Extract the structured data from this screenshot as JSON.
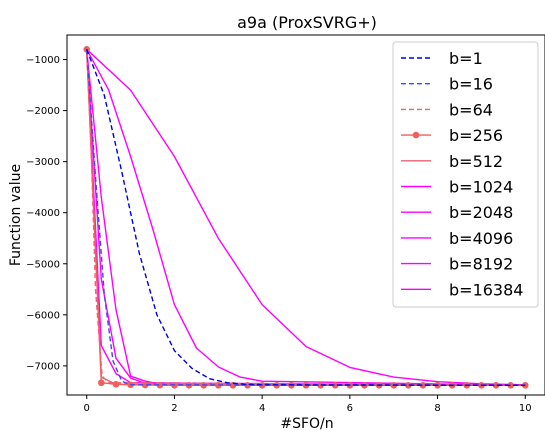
{
  "chart_data": {
    "type": "line",
    "title": "a9a (ProxSVRG+)",
    "xlabel": "#SFO/n",
    "ylabel": "Function value",
    "xlim": [
      -0.45,
      10.45
    ],
    "ylim": [
      -7570,
      -520
    ],
    "xticks": [
      0,
      2,
      4,
      6,
      8,
      10
    ],
    "yticks": [
      -1000,
      -2000,
      -3000,
      -4000,
      -5000,
      -6000,
      -7000
    ],
    "xtick_labels": [
      "0",
      "2",
      "4",
      "6",
      "8",
      "10"
    ],
    "ytick_labels": [
      "−1000",
      "−2000",
      "−3000",
      "−4000",
      "−5000",
      "−6000",
      "−7000"
    ],
    "grid": false,
    "legend": "top-right",
    "series": [
      {
        "name": "b=1",
        "color": "#0000dd",
        "dash": "dashed",
        "marker": false,
        "x": [
          0,
          0.4,
          0.8,
          1.2,
          1.6,
          2.0,
          2.4,
          2.8,
          3.2,
          3.6,
          4.0,
          10
        ],
        "y": [
          -800,
          -1700,
          -3200,
          -4800,
          -6000,
          -6700,
          -7050,
          -7250,
          -7330,
          -7360,
          -7370,
          -7380
        ]
      },
      {
        "name": "b=16",
        "color": "#4444ee",
        "dash": "dashed",
        "marker": false,
        "x": [
          0,
          0.2,
          0.4,
          0.6,
          0.8,
          1.0,
          10
        ],
        "y": [
          -800,
          -3300,
          -5600,
          -6900,
          -7300,
          -7370,
          -7380
        ]
      },
      {
        "name": "b=64",
        "color": "#f06070",
        "dash": "dashed",
        "marker": false,
        "x": [
          0,
          0.1,
          0.2,
          0.35,
          0.5,
          10
        ],
        "y": [
          -800,
          -2700,
          -5500,
          -7200,
          -7330,
          -7380
        ]
      },
      {
        "name": "b=256",
        "color": "#f25c5c",
        "dash": "solid",
        "marker": true,
        "x": [
          0,
          0.333,
          0.667,
          1.0,
          1.333,
          1.667,
          2.0,
          2.333,
          2.667,
          3.0,
          3.333,
          3.667,
          4.0,
          4.333,
          4.667,
          5.0,
          5.333,
          5.667,
          6.0,
          6.333,
          6.667,
          7.0,
          7.333,
          7.667,
          8.0,
          8.333,
          8.667,
          9.0,
          9.333,
          9.667,
          10.0
        ],
        "y": [
          -800,
          -7330,
          -7360,
          -7370,
          -7375,
          -7378,
          -7380,
          -7380,
          -7380,
          -7380,
          -7380,
          -7380,
          -7380,
          -7380,
          -7380,
          -7380,
          -7380,
          -7380,
          -7380,
          -7380,
          -7380,
          -7380,
          -7380,
          -7380,
          -7380,
          -7380,
          -7380,
          -7380,
          -7380,
          -7380,
          -7380
        ]
      },
      {
        "name": "b=512",
        "color": "#f06070",
        "dash": "solid",
        "marker": false,
        "x": [
          0,
          0.333,
          0.667,
          10
        ],
        "y": [
          -800,
          -7220,
          -7360,
          -7380
        ]
      },
      {
        "name": "b=1024",
        "color": "#ff00ff",
        "dash": "solid",
        "marker": false,
        "x": [
          0,
          0.333,
          0.667,
          1.0,
          10
        ],
        "y": [
          -800,
          -6600,
          -7150,
          -7330,
          -7380
        ]
      },
      {
        "name": "b=2048",
        "color": "#ff00ff",
        "dash": "solid",
        "marker": false,
        "x": [
          0,
          0.333,
          0.667,
          1.0,
          1.333,
          1.667,
          10
        ],
        "y": [
          -800,
          -5300,
          -6850,
          -7240,
          -7340,
          -7370,
          -7380
        ]
      },
      {
        "name": "b=4096",
        "color": "#ff00ff",
        "dash": "solid",
        "marker": false,
        "x": [
          0,
          0.333,
          0.667,
          1.0,
          1.333,
          1.667,
          2.0,
          2.333,
          10
        ],
        "y": [
          -800,
          -3700,
          -5900,
          -7200,
          -7300,
          -7350,
          -7370,
          -7375,
          -7380
        ]
      },
      {
        "name": "b=8192",
        "color": "#ff00ff",
        "dash": "solid",
        "marker": false,
        "x": [
          0,
          0.5,
          1.0,
          1.5,
          2.0,
          2.5,
          3.0,
          3.5,
          4.0,
          10
        ],
        "y": [
          -800,
          -1600,
          -2900,
          -4300,
          -5800,
          -6650,
          -7020,
          -7220,
          -7300,
          -7380
        ]
      },
      {
        "name": "b=16384",
        "color": "#ff00ff",
        "dash": "solid",
        "marker": false,
        "x": [
          0,
          1.0,
          2.0,
          3.0,
          4.0,
          5.0,
          6.0,
          7.0,
          8.0,
          9.0,
          10
        ],
        "y": [
          -800,
          -1600,
          -2900,
          -4500,
          -5800,
          -6620,
          -7030,
          -7220,
          -7310,
          -7350,
          -7370
        ]
      }
    ]
  }
}
